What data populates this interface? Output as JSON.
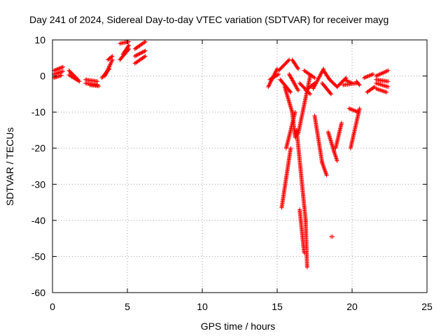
{
  "chart_data": {
    "type": "scatter",
    "title": "Day 241 of 2024, Sidereal Day-to-day VTEC variation (SDTVAR) for receiver mayg",
    "xlabel": "GPS time / hours",
    "ylabel": "SDTVAR / TECUs",
    "xlim": [
      0,
      25
    ],
    "ylim": [
      -60,
      10
    ],
    "xticks": [
      0,
      5,
      10,
      15,
      20,
      25
    ],
    "yticks": [
      10,
      0,
      -10,
      -20,
      -30,
      -40,
      -50,
      -60
    ],
    "grid": true,
    "marker": "+",
    "color": "#ff0000",
    "segments": [
      {
        "x": [
          0.1,
          0.7
        ],
        "y": [
          1.5,
          2.5
        ]
      },
      {
        "x": [
          0.1,
          0.7
        ],
        "y": [
          0.5,
          1.3
        ]
      },
      {
        "x": [
          0.1,
          0.6
        ],
        "y": [
          -0.5,
          0.2
        ]
      },
      {
        "x": [
          1.1,
          1.7
        ],
        "y": [
          1.5,
          -1.0
        ]
      },
      {
        "x": [
          1.1,
          1.8
        ],
        "y": [
          0.3,
          -1.5
        ]
      },
      {
        "x": [
          2.2,
          3.0
        ],
        "y": [
          -1.0,
          -1.5
        ]
      },
      {
        "x": [
          2.2,
          3.0
        ],
        "y": [
          -2.0,
          -2.5
        ]
      },
      {
        "x": [
          2.5,
          3.1
        ],
        "y": [
          -2.5,
          -2.8
        ]
      },
      {
        "x": [
          3.3,
          3.8
        ],
        "y": [
          -0.5,
          2.0
        ]
      },
      {
        "x": [
          3.5,
          4.0
        ],
        "y": [
          0.0,
          4.5
        ]
      },
      {
        "x": [
          3.7,
          4.0
        ],
        "y": [
          4.5,
          5.5
        ]
      },
      {
        "x": [
          4.5,
          5.1
        ],
        "y": [
          9.0,
          9.5
        ]
      },
      {
        "x": [
          4.5,
          5.1
        ],
        "y": [
          4.5,
          7.5
        ]
      },
      {
        "x": [
          4.7,
          5.1
        ],
        "y": [
          6.0,
          8.5
        ]
      },
      {
        "x": [
          5.5,
          6.2
        ],
        "y": [
          7.5,
          9.5
        ]
      },
      {
        "x": [
          5.5,
          6.2
        ],
        "y": [
          5.5,
          7.0
        ]
      },
      {
        "x": [
          5.5,
          6.2
        ],
        "y": [
          3.5,
          5.5
        ]
      },
      {
        "x": [
          14.4,
          15.0
        ],
        "y": [
          -3.0,
          2.0
        ]
      },
      {
        "x": [
          14.5,
          15.1
        ],
        "y": [
          -1.0,
          0.5
        ]
      },
      {
        "x": [
          15.1,
          15.8
        ],
        "y": [
          1.5,
          4.5
        ]
      },
      {
        "x": [
          15.2,
          15.9
        ],
        "y": [
          -1.0,
          -4.5
        ]
      },
      {
        "x": [
          15.3,
          15.9
        ],
        "y": [
          -36.5,
          -20.0
        ]
      },
      {
        "x": [
          15.6,
          16.2
        ],
        "y": [
          -20.0,
          -10.0
        ]
      },
      {
        "x": [
          15.5,
          16.0
        ],
        "y": [
          -3.0,
          -10.0
        ]
      },
      {
        "x": [
          16.0,
          16.2
        ],
        "y": [
          -10.0,
          -17.0
        ]
      },
      {
        "x": [
          15.8,
          16.4
        ],
        "y": [
          0.5,
          -4.0
        ]
      },
      {
        "x": [
          16.0,
          16.4
        ],
        "y": [
          4.5,
          2.0
        ]
      },
      {
        "x": [
          16.4,
          17.2
        ],
        "y": [
          -16.0,
          0.0
        ]
      },
      {
        "x": [
          16.5,
          17.2
        ],
        "y": [
          -2.0,
          -5.0
        ]
      },
      {
        "x": [
          16.3,
          16.9
        ],
        "y": [
          -15.0,
          -40.0
        ]
      },
      {
        "x": [
          16.9,
          17.0
        ],
        "y": [
          -40.0,
          -53.0
        ]
      },
      {
        "x": [
          16.5,
          16.8
        ],
        "y": [
          -37.0,
          -49.0
        ]
      },
      {
        "x": [
          16.9,
          17.5
        ],
        "y": [
          -4.0,
          -2.0
        ]
      },
      {
        "x": [
          16.8,
          17.5
        ],
        "y": [
          1.5,
          -0.5
        ]
      },
      {
        "x": [
          17.4,
          18.1
        ],
        "y": [
          -3.5,
          2.0
        ]
      },
      {
        "x": [
          17.5,
          18.0
        ],
        "y": [
          -11.0,
          -24.0
        ]
      },
      {
        "x": [
          18.0,
          18.3
        ],
        "y": [
          -24.0,
          -27.5
        ]
      },
      {
        "x": [
          18.1,
          18.5
        ],
        "y": [
          1.5,
          -1.0
        ]
      },
      {
        "x": [
          18.0,
          18.6
        ],
        "y": [
          -2.0,
          -5.0
        ]
      },
      {
        "x": [
          18.4,
          18.8
        ],
        "y": [
          -15.5,
          -21.0
        ]
      },
      {
        "x": [
          18.8,
          19.0
        ],
        "y": [
          -21.0,
          -23.5
        ]
      },
      {
        "x": [
          18.9,
          19.3
        ],
        "y": [
          -20.0,
          -13.0
        ]
      },
      {
        "x": [
          18.5,
          19.0
        ],
        "y": [
          -1.0,
          -3.0
        ]
      },
      {
        "x": [
          19.0,
          19.6
        ],
        "y": [
          -3.0,
          -0.5
        ]
      },
      {
        "x": [
          19.4,
          20.3
        ],
        "y": [
          -2.5,
          -2.0
        ]
      },
      {
        "x": [
          19.5,
          20.0
        ],
        "y": [
          -1.0,
          -2.0
        ]
      },
      {
        "x": [
          19.9,
          20.5
        ],
        "y": [
          -20.0,
          -9.0
        ]
      },
      {
        "x": [
          19.8,
          20.4
        ],
        "y": [
          -9.0,
          -10.0
        ]
      },
      {
        "x": [
          20.3,
          20.5
        ],
        "y": [
          -1.5,
          -2.5
        ]
      },
      {
        "x": [
          20.8,
          21.4
        ],
        "y": [
          -0.5,
          0.5
        ]
      },
      {
        "x": [
          21.0,
          21.5
        ],
        "y": [
          -4.5,
          -3.0
        ]
      },
      {
        "x": [
          21.6,
          22.4
        ],
        "y": [
          0.0,
          1.5
        ]
      },
      {
        "x": [
          21.6,
          22.4
        ],
        "y": [
          -1.0,
          -1.5
        ]
      },
      {
        "x": [
          21.6,
          22.4
        ],
        "y": [
          -2.0,
          -3.0
        ]
      },
      {
        "x": [
          21.6,
          22.3
        ],
        "y": [
          -3.5,
          -4.5
        ]
      },
      {
        "x": [
          18.6,
          18.7
        ],
        "y": [
          -44.5,
          -44.5
        ]
      }
    ]
  }
}
